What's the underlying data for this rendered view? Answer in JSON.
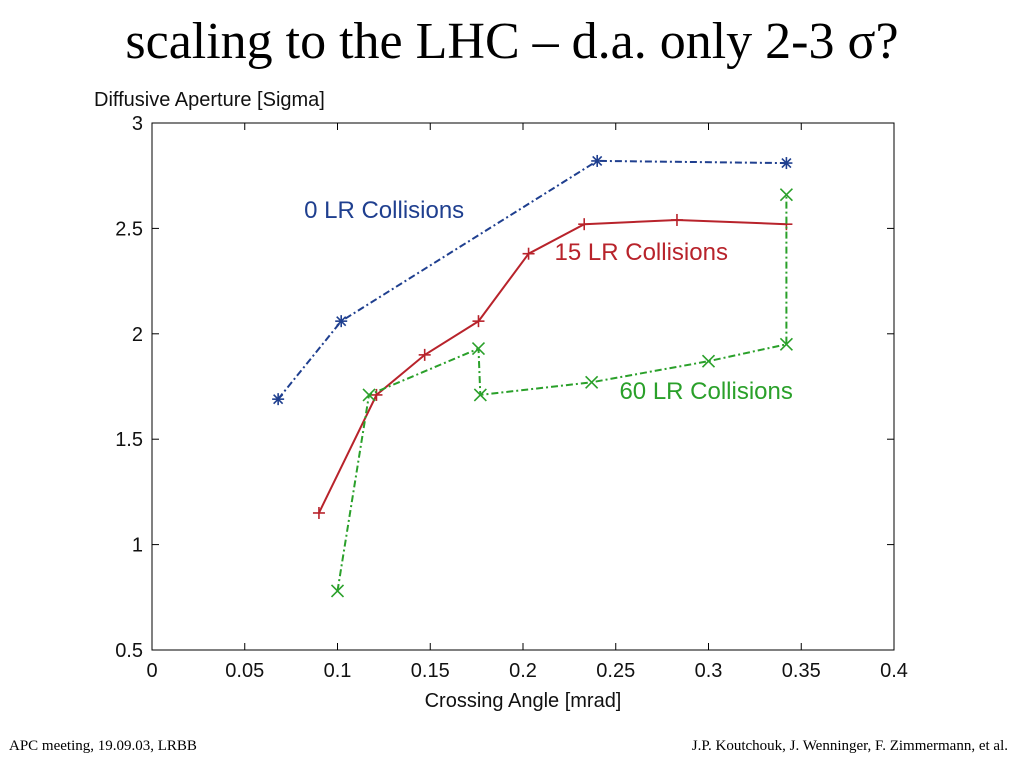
{
  "slide": {
    "title": "scaling to the LHC – d.a. only 2-3 σ?",
    "footer_left": "APC meeting, 19.09.03, LRBB",
    "footer_right": "J.P. Koutchouk, J. Wenninger, F. Zimmermann, et al."
  },
  "chart_data": {
    "type": "line",
    "title": "",
    "ylabel": "Diffusive Aperture [Sigma]",
    "xlabel": "Crossing Angle [mrad]",
    "xlim": [
      0,
      0.4
    ],
    "ylim": [
      0.5,
      3
    ],
    "xticks": [
      "0",
      "0.05",
      "0.1",
      "0.15",
      "0.2",
      "0.25",
      "0.3",
      "0.35",
      "0.4"
    ],
    "yticks": [
      "0.5",
      "1",
      "1.5",
      "2",
      "2.5",
      "3"
    ],
    "grid": false,
    "series": [
      {
        "name": "0 LR Collisions",
        "color": "#1f3f8f",
        "marker": "asterisk",
        "line": "dash-dot",
        "x": [
          0.068,
          0.102,
          0.24,
          0.342
        ],
        "y": [
          1.69,
          2.06,
          2.82,
          2.81
        ]
      },
      {
        "name": "15 LR Collisions",
        "color": "#b8232b",
        "marker": "plus",
        "line": "solid",
        "x": [
          0.09,
          0.121,
          0.147,
          0.176,
          0.203,
          0.233,
          0.283,
          0.342
        ],
        "y": [
          1.15,
          1.71,
          1.9,
          2.06,
          2.38,
          2.52,
          2.54,
          2.52
        ]
      },
      {
        "name": "60 LR Collisions",
        "color": "#2aa02a",
        "marker": "x",
        "line": "dash-dot",
        "x": [
          0.1,
          0.117,
          0.176,
          0.177,
          0.237,
          0.3,
          0.342,
          0.342
        ],
        "y": [
          0.78,
          1.71,
          1.93,
          1.71,
          1.77,
          1.87,
          1.95,
          2.66
        ]
      }
    ],
    "annotations": [
      {
        "text": "0 LR Collisions",
        "color": "#1f3f8f",
        "x": 0.082,
        "y": 2.55
      },
      {
        "text": "15 LR Collisions",
        "color": "#b8232b",
        "x": 0.217,
        "y": 2.35
      },
      {
        "text": "60 LR Collisions",
        "color": "#2aa02a",
        "x": 0.252,
        "y": 1.69
      }
    ]
  }
}
